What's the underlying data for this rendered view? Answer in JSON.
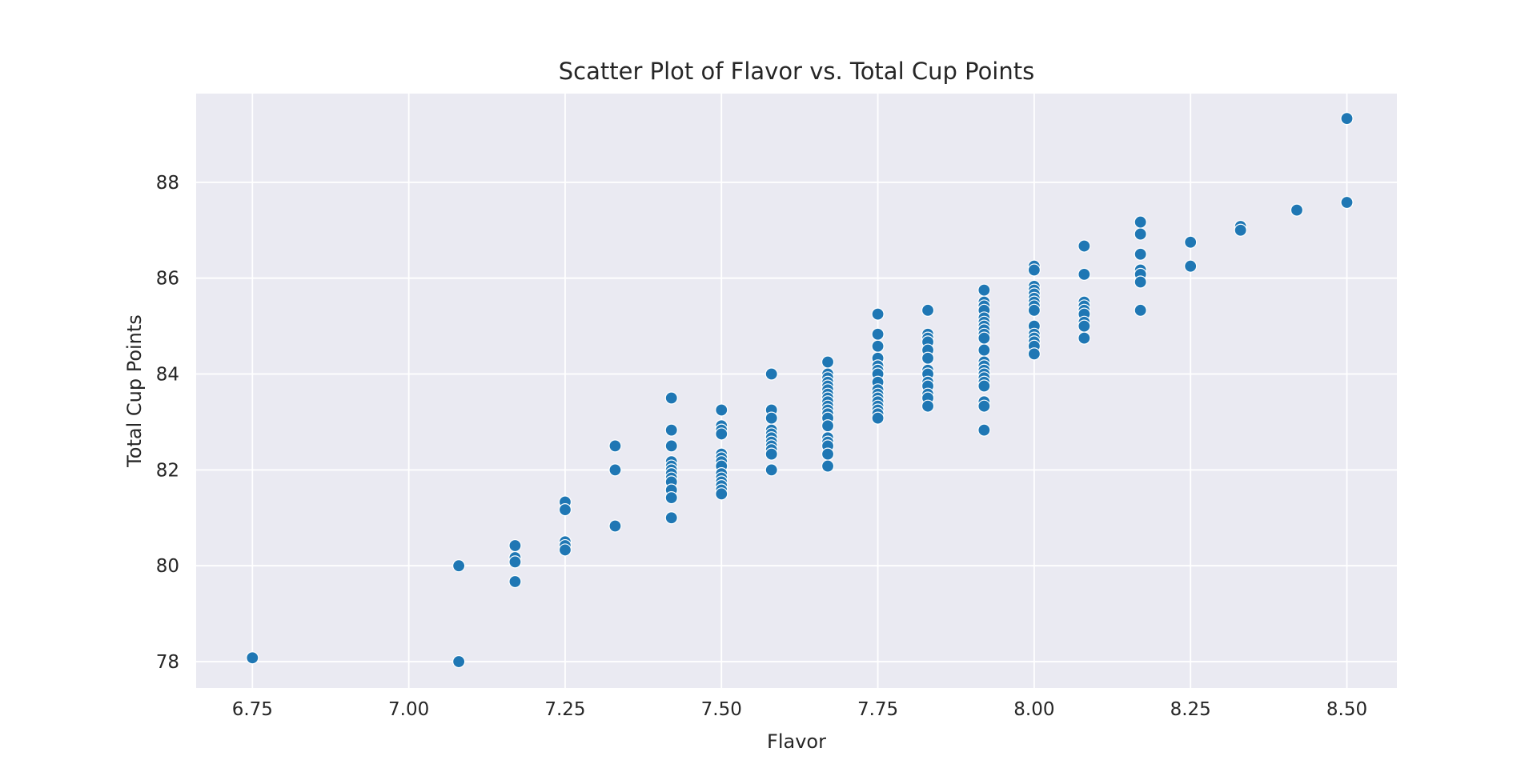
{
  "chart_data": {
    "type": "scatter",
    "title": "Scatter Plot of Flavor vs. Total Cup Points",
    "xlabel": "Flavor",
    "ylabel": "Total Cup Points",
    "xlim": [
      6.66,
      8.58
    ],
    "ylim": [
      77.45,
      89.85
    ],
    "xticks": [
      "6.75",
      "7.00",
      "7.25",
      "7.50",
      "7.75",
      "8.00",
      "8.25",
      "8.50"
    ],
    "yticks": [
      "78",
      "80",
      "82",
      "84",
      "86",
      "88"
    ],
    "grid": true,
    "legend": "none",
    "colors": {
      "background": "#eaeaf2",
      "grid": "#ffffff",
      "point": "#1f77b4"
    },
    "points": [
      [
        6.75,
        78.08
      ],
      [
        7.08,
        80.0
      ],
      [
        7.08,
        78.0
      ],
      [
        7.17,
        80.42
      ],
      [
        7.17,
        80.17
      ],
      [
        7.17,
        80.08
      ],
      [
        7.17,
        79.67
      ],
      [
        7.25,
        81.33
      ],
      [
        7.25,
        81.17
      ],
      [
        7.25,
        80.5
      ],
      [
        7.25,
        80.42
      ],
      [
        7.25,
        80.33
      ],
      [
        7.33,
        82.5
      ],
      [
        7.33,
        82.0
      ],
      [
        7.33,
        80.83
      ],
      [
        7.42,
        83.5
      ],
      [
        7.42,
        82.83
      ],
      [
        7.42,
        82.5
      ],
      [
        7.42,
        82.17
      ],
      [
        7.42,
        82.08
      ],
      [
        7.42,
        82.0
      ],
      [
        7.42,
        81.92
      ],
      [
        7.42,
        81.83
      ],
      [
        7.42,
        81.75
      ],
      [
        7.42,
        81.58
      ],
      [
        7.42,
        81.42
      ],
      [
        7.42,
        81.0
      ],
      [
        7.5,
        83.25
      ],
      [
        7.5,
        82.92
      ],
      [
        7.5,
        82.83
      ],
      [
        7.5,
        82.75
      ],
      [
        7.5,
        82.33
      ],
      [
        7.5,
        82.25
      ],
      [
        7.5,
        82.17
      ],
      [
        7.5,
        82.08
      ],
      [
        7.5,
        81.92
      ],
      [
        7.5,
        81.83
      ],
      [
        7.5,
        81.75
      ],
      [
        7.5,
        81.67
      ],
      [
        7.5,
        81.58
      ],
      [
        7.5,
        81.5
      ],
      [
        7.58,
        84.0
      ],
      [
        7.58,
        83.25
      ],
      [
        7.58,
        83.08
      ],
      [
        7.58,
        82.83
      ],
      [
        7.58,
        82.75
      ],
      [
        7.58,
        82.67
      ],
      [
        7.58,
        82.58
      ],
      [
        7.58,
        82.5
      ],
      [
        7.58,
        82.42
      ],
      [
        7.58,
        82.33
      ],
      [
        7.58,
        82.0
      ],
      [
        7.67,
        84.25
      ],
      [
        7.67,
        84.0
      ],
      [
        7.67,
        83.92
      ],
      [
        7.67,
        83.83
      ],
      [
        7.67,
        83.75
      ],
      [
        7.67,
        83.67
      ],
      [
        7.67,
        83.58
      ],
      [
        7.67,
        83.5
      ],
      [
        7.67,
        83.42
      ],
      [
        7.67,
        83.33
      ],
      [
        7.67,
        83.25
      ],
      [
        7.67,
        83.17
      ],
      [
        7.67,
        83.08
      ],
      [
        7.67,
        82.92
      ],
      [
        7.67,
        82.67
      ],
      [
        7.67,
        82.58
      ],
      [
        7.67,
        82.5
      ],
      [
        7.67,
        82.33
      ],
      [
        7.67,
        82.08
      ],
      [
        7.75,
        85.25
      ],
      [
        7.75,
        84.83
      ],
      [
        7.75,
        84.58
      ],
      [
        7.75,
        84.33
      ],
      [
        7.75,
        84.17
      ],
      [
        7.75,
        84.08
      ],
      [
        7.75,
        84.0
      ],
      [
        7.75,
        83.83
      ],
      [
        7.75,
        83.67
      ],
      [
        7.75,
        83.58
      ],
      [
        7.75,
        83.5
      ],
      [
        7.75,
        83.42
      ],
      [
        7.75,
        83.33
      ],
      [
        7.75,
        83.25
      ],
      [
        7.75,
        83.17
      ],
      [
        7.75,
        83.08
      ],
      [
        7.83,
        85.33
      ],
      [
        7.83,
        84.83
      ],
      [
        7.83,
        84.75
      ],
      [
        7.83,
        84.67
      ],
      [
        7.83,
        84.5
      ],
      [
        7.83,
        84.33
      ],
      [
        7.83,
        84.08
      ],
      [
        7.83,
        84.0
      ],
      [
        7.83,
        83.83
      ],
      [
        7.83,
        83.75
      ],
      [
        7.83,
        83.58
      ],
      [
        7.83,
        83.5
      ],
      [
        7.83,
        83.33
      ],
      [
        7.92,
        85.75
      ],
      [
        7.92,
        85.5
      ],
      [
        7.92,
        85.42
      ],
      [
        7.92,
        85.33
      ],
      [
        7.92,
        85.17
      ],
      [
        7.92,
        85.08
      ],
      [
        7.92,
        85.0
      ],
      [
        7.92,
        84.92
      ],
      [
        7.92,
        84.83
      ],
      [
        7.92,
        84.75
      ],
      [
        7.92,
        84.5
      ],
      [
        7.92,
        84.25
      ],
      [
        7.92,
        84.17
      ],
      [
        7.92,
        84.08
      ],
      [
        7.92,
        84.0
      ],
      [
        7.92,
        83.92
      ],
      [
        7.92,
        83.83
      ],
      [
        7.92,
        83.75
      ],
      [
        7.92,
        83.42
      ],
      [
        7.92,
        83.33
      ],
      [
        7.92,
        82.83
      ],
      [
        8.0,
        86.25
      ],
      [
        8.0,
        86.17
      ],
      [
        8.0,
        85.83
      ],
      [
        8.0,
        85.75
      ],
      [
        8.0,
        85.67
      ],
      [
        8.0,
        85.58
      ],
      [
        8.0,
        85.5
      ],
      [
        8.0,
        85.42
      ],
      [
        8.0,
        85.33
      ],
      [
        8.0,
        85.0
      ],
      [
        8.0,
        84.83
      ],
      [
        8.0,
        84.75
      ],
      [
        8.0,
        84.67
      ],
      [
        8.0,
        84.58
      ],
      [
        8.0,
        84.42
      ],
      [
        8.08,
        86.67
      ],
      [
        8.08,
        86.08
      ],
      [
        8.08,
        85.5
      ],
      [
        8.08,
        85.42
      ],
      [
        8.08,
        85.33
      ],
      [
        8.08,
        85.25
      ],
      [
        8.08,
        85.08
      ],
      [
        8.08,
        85.0
      ],
      [
        8.08,
        84.75
      ],
      [
        8.17,
        87.17
      ],
      [
        8.17,
        86.92
      ],
      [
        8.17,
        86.5
      ],
      [
        8.17,
        86.17
      ],
      [
        8.17,
        86.08
      ],
      [
        8.17,
        85.92
      ],
      [
        8.17,
        85.33
      ],
      [
        8.25,
        86.75
      ],
      [
        8.25,
        86.25
      ],
      [
        8.33,
        87.08
      ],
      [
        8.33,
        87.0
      ],
      [
        8.42,
        87.42
      ],
      [
        8.5,
        89.33
      ],
      [
        8.5,
        87.58
      ]
    ]
  }
}
